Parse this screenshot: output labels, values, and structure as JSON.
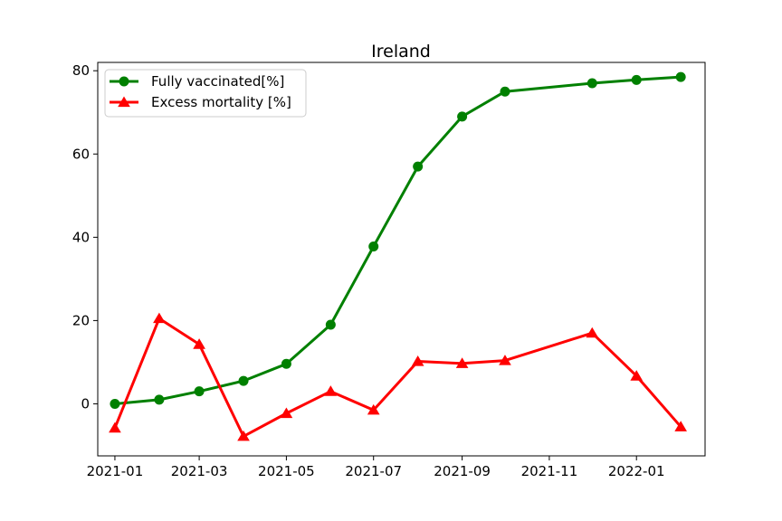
{
  "chart_data": {
    "type": "line",
    "title": "Ireland",
    "xlabel": "",
    "ylabel": "",
    "x_ticks": [
      "2021-01",
      "2021-03",
      "2021-05",
      "2021-07",
      "2021-09",
      "2021-11",
      "2022-01"
    ],
    "y_ticks": [
      "0",
      "20",
      "40",
      "60",
      "80"
    ],
    "xlim": [
      "2020-12-20",
      "2022-02-18"
    ],
    "ylim": [
      -12.5,
      82
    ],
    "grid": false,
    "legend_position": "top-left",
    "series": [
      {
        "name": "Fully vaccinated[%]",
        "color": "#008000",
        "marker": "circle",
        "points": [
          {
            "x": "2021-01-01",
            "y": 0.0
          },
          {
            "x": "2021-02-01",
            "y": 1.0
          },
          {
            "x": "2021-03-01",
            "y": 3.0
          },
          {
            "x": "2021-04-01",
            "y": 5.5
          },
          {
            "x": "2021-05-01",
            "y": 9.6
          },
          {
            "x": "2021-06-01",
            "y": 19.0
          },
          {
            "x": "2021-07-01",
            "y": 37.8
          },
          {
            "x": "2021-08-01",
            "y": 57.0
          },
          {
            "x": "2021-09-01",
            "y": 69.0
          },
          {
            "x": "2021-10-01",
            "y": 75.0
          },
          {
            "x": "2021-12-01",
            "y": 77.0
          },
          {
            "x": "2022-01-01",
            "y": 77.8
          },
          {
            "x": "2022-02-01",
            "y": 78.5
          }
        ]
      },
      {
        "name": "Excess mortality [%]",
        "color": "#ff0000",
        "marker": "triangle",
        "points": [
          {
            "x": "2021-01-01",
            "y": -5.8
          },
          {
            "x": "2021-02-01",
            "y": 20.5
          },
          {
            "x": "2021-03-01",
            "y": 14.3
          },
          {
            "x": "2021-04-01",
            "y": -7.8
          },
          {
            "x": "2021-05-01",
            "y": -2.3
          },
          {
            "x": "2021-06-01",
            "y": 3.0
          },
          {
            "x": "2021-07-01",
            "y": -1.5
          },
          {
            "x": "2021-08-01",
            "y": 10.2
          },
          {
            "x": "2021-09-01",
            "y": 9.7
          },
          {
            "x": "2021-10-01",
            "y": 10.4
          },
          {
            "x": "2021-12-01",
            "y": 17.0
          },
          {
            "x": "2022-01-01",
            "y": 6.7
          },
          {
            "x": "2022-02-01",
            "y": -5.5
          }
        ]
      }
    ]
  }
}
